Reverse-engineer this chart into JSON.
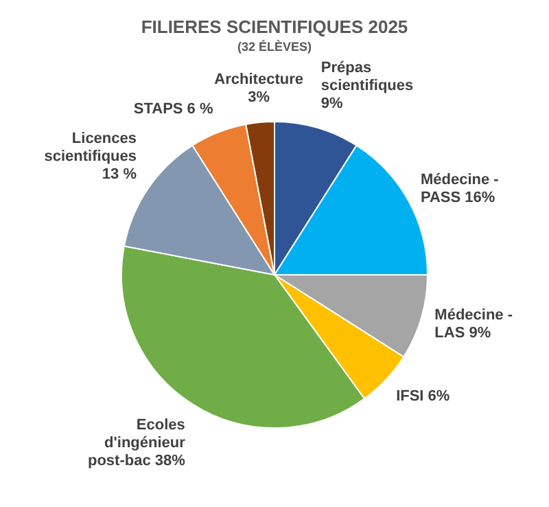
{
  "chart_data": {
    "type": "pie",
    "title": "FILIERES SCIENTIFIQUES 2025",
    "subtitle": "(32 ÉLÈVES)",
    "categories": [
      "Prépas scientifiques",
      "Médecine - PASS",
      "Médecine - LAS",
      "IFSI",
      "Ecoles d'ingénieur post-bac",
      "Licences scientifiques",
      "STAPS",
      "Architecture"
    ],
    "values": [
      9,
      16,
      9,
      6,
      38,
      13,
      6,
      3
    ],
    "value_labels": [
      "9%",
      "16%",
      "9%",
      "6%",
      "38%",
      "13 %",
      "6 %",
      "3%"
    ],
    "colors": [
      "#2f5597",
      "#00b0f0",
      "#a5a5a5",
      "#ffc000",
      "#70ad47",
      "#8497b0",
      "#ed7d31",
      "#843c0c"
    ],
    "legend": false
  }
}
